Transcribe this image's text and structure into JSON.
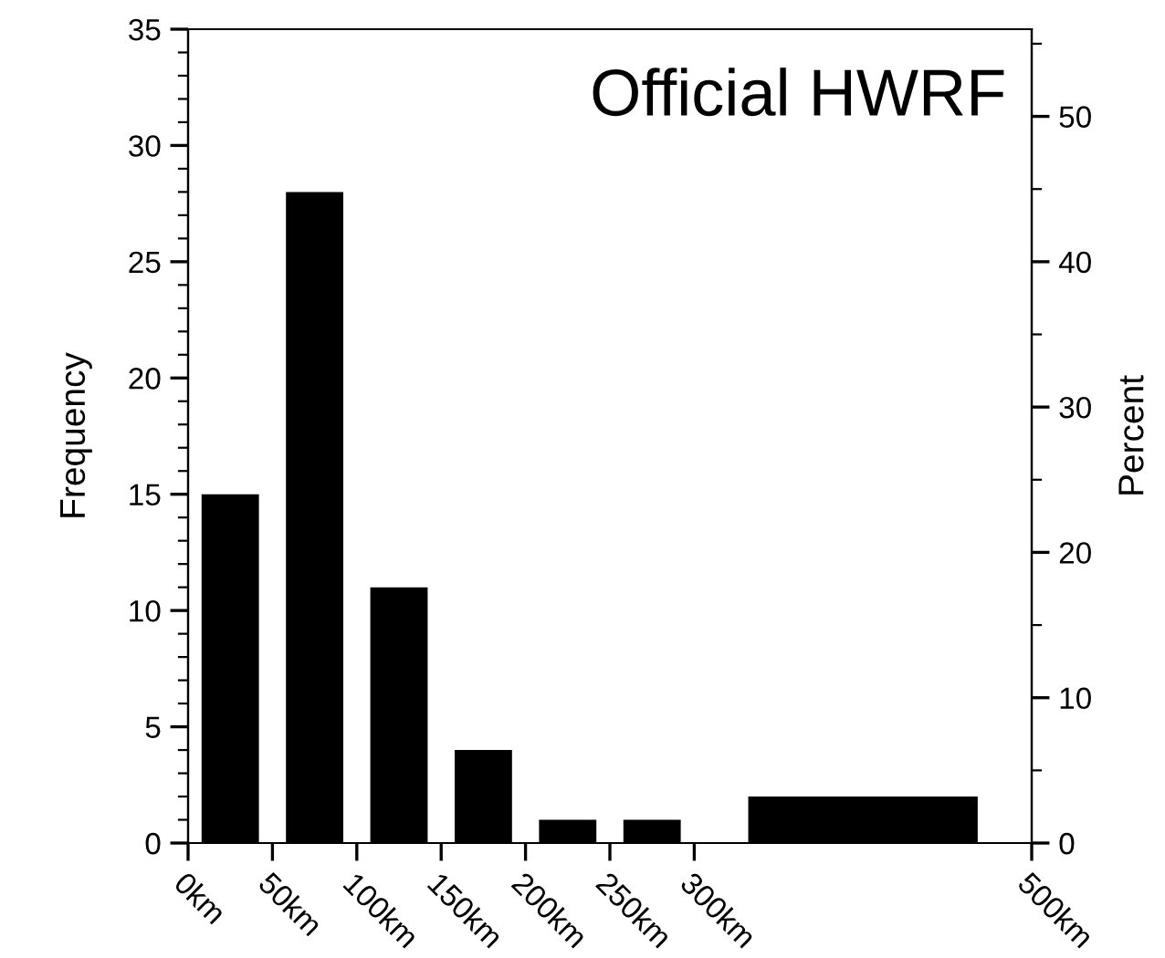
{
  "chart_data": {
    "type": "histogram",
    "title": "Official HWRF",
    "ylabel": "Frequency",
    "y2label": "Percent",
    "bins": [
      0,
      50,
      100,
      150,
      200,
      250,
      300,
      500
    ],
    "values": [
      15,
      28,
      11,
      4,
      1,
      1,
      2
    ],
    "color": "#000000",
    "xlim": [
      0,
      500
    ],
    "xticks": [
      {
        "value": 0,
        "label": "0km"
      },
      {
        "value": 50,
        "label": "50km"
      },
      {
        "value": 100,
        "label": "100km"
      },
      {
        "value": 150,
        "label": "150km"
      },
      {
        "value": 200,
        "label": "200km"
      },
      {
        "value": 250,
        "label": "250km"
      },
      {
        "value": 300,
        "label": "300km"
      },
      {
        "value": 500,
        "label": "500km"
      }
    ],
    "ylim": [
      0,
      35
    ],
    "yticks": [
      0,
      5,
      10,
      15,
      20,
      25,
      30,
      35
    ],
    "y2lim": [
      0,
      56
    ],
    "y2ticks": [
      0,
      10,
      20,
      30,
      40,
      50
    ],
    "grid": false,
    "legend": false
  }
}
